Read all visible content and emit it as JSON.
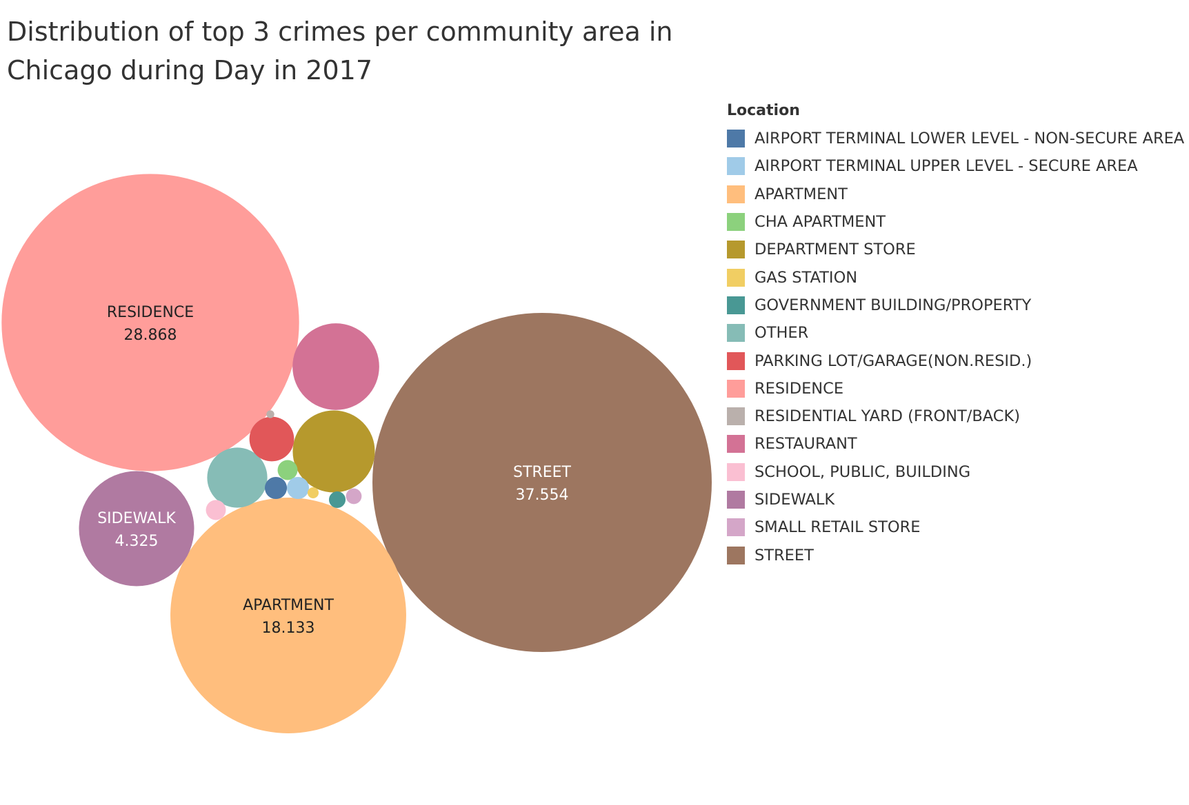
{
  "title_lines": [
    "Distribution of top 3 crimes per community area in",
    "Chicago during Day in 2017"
  ],
  "legend": {
    "title": "Location",
    "items": [
      {
        "label": "AIRPORT TERMINAL LOWER LEVEL - NON-SECURE AREA",
        "color": "#4e79a7"
      },
      {
        "label": "AIRPORT TERMINAL UPPER LEVEL - SECURE AREA",
        "color": "#a0cbe8"
      },
      {
        "label": "APARTMENT",
        "color": "#ffbe7d"
      },
      {
        "label": "CHA APARTMENT",
        "color": "#8cd17d"
      },
      {
        "label": "DEPARTMENT STORE",
        "color": "#b6992d"
      },
      {
        "label": "GAS STATION",
        "color": "#f1ce63"
      },
      {
        "label": "GOVERNMENT BUILDING/PROPERTY",
        "color": "#499894"
      },
      {
        "label": "OTHER",
        "color": "#86bcb6"
      },
      {
        "label": "PARKING LOT/GARAGE(NON.RESID.)",
        "color": "#e15759"
      },
      {
        "label": "RESIDENCE",
        "color": "#ff9d9a"
      },
      {
        "label": "RESIDENTIAL YARD (FRONT/BACK)",
        "color": "#bab0ac"
      },
      {
        "label": "RESTAURANT",
        "color": "#d37295"
      },
      {
        "label": "SCHOOL, PUBLIC, BUILDING",
        "color": "#fabfd2"
      },
      {
        "label": "SIDEWALK",
        "color": "#b07aa1"
      },
      {
        "label": "SMALL RETAIL STORE",
        "color": "#d4a6c8"
      },
      {
        "label": "STREET",
        "color": "#9d7660"
      }
    ]
  },
  "chart_data": {
    "type": "bubble",
    "title": "Distribution of top 3 crimes per community area in Chicago during Day in 2017",
    "legend_title": "Location",
    "legend_position": "right",
    "bubbles": [
      {
        "category": "STREET",
        "value": 37.554,
        "label": "STREET",
        "value_label": "37.554",
        "text_color": "#ffffff"
      },
      {
        "category": "RESIDENCE",
        "value": 28.868,
        "label": "RESIDENCE",
        "value_label": "28.868",
        "text_color": "#222222"
      },
      {
        "category": "APARTMENT",
        "value": 18.133,
        "label": "APARTMENT",
        "value_label": "18.133",
        "text_color": "#222222"
      },
      {
        "category": "SIDEWALK",
        "value": 4.325,
        "label": "SIDEWALK",
        "value_label": "4.325",
        "text_color": "#ffffff"
      },
      {
        "category": "RESTAURANT",
        "value": 2.45
      },
      {
        "category": "DEPARTMENT STORE",
        "value": 2.2
      },
      {
        "category": "OTHER",
        "value": 1.18
      },
      {
        "category": "PARKING LOT/GARAGE(NON.RESID.)",
        "value": 0.65
      },
      {
        "category": "CHA APARTMENT",
        "value": 0.13
      },
      {
        "category": "AIRPORT TERMINAL LOWER LEVEL - NON-SECURE AREA",
        "value": 0.16
      },
      {
        "category": "AIRPORT TERMINAL UPPER LEVEL - SECURE AREA",
        "value": 0.16
      },
      {
        "category": "SCHOOL, PUBLIC, BUILDING",
        "value": 0.13
      },
      {
        "category": "GOVERNMENT BUILDING/PROPERTY",
        "value": 0.09
      },
      {
        "category": "SMALL RETAIL STORE",
        "value": 0.08
      },
      {
        "category": "GAS STATION",
        "value": 0.04
      },
      {
        "category": "RESIDENTIAL YARD (FRONT/BACK)",
        "value": 0.02
      }
    ]
  }
}
